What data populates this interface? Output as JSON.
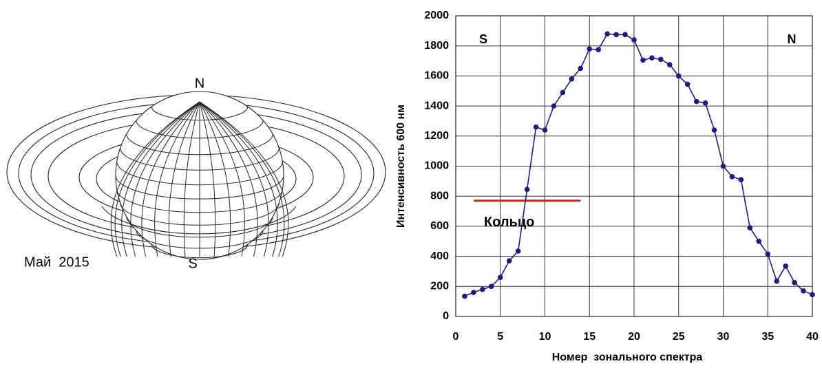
{
  "diagram": {
    "north_label": "N",
    "south_label": "S",
    "caption": "Май  2015"
  },
  "chart_data": {
    "type": "line",
    "x": [
      1,
      2,
      3,
      4,
      5,
      6,
      7,
      8,
      9,
      10,
      11,
      12,
      13,
      14,
      15,
      16,
      17,
      18,
      19,
      20,
      21,
      22,
      23,
      24,
      25,
      26,
      27,
      28,
      29,
      30,
      31,
      32,
      33,
      34,
      35,
      36,
      37,
      38,
      39,
      40
    ],
    "series": [
      {
        "name": "Интенсивность 600 нм",
        "color": "#1c1c80",
        "values": [
          135,
          160,
          180,
          200,
          260,
          370,
          435,
          845,
          1260,
          1240,
          1400,
          1490,
          1580,
          1650,
          1780,
          1775,
          1880,
          1875,
          1875,
          1840,
          1705,
          1720,
          1710,
          1675,
          1600,
          1545,
          1430,
          1420,
          1240,
          1000,
          930,
          910,
          590,
          500,
          415,
          235,
          335,
          225,
          170,
          145
        ]
      }
    ],
    "xlabel": "Номер  зонального спектра",
    "ylabel": "Интенсивность 600 нм",
    "xlim": [
      0,
      40
    ],
    "xticks": [
      0,
      5,
      10,
      15,
      20,
      25,
      30,
      35,
      40
    ],
    "ylim": [
      0,
      2000
    ],
    "yticks": [
      0,
      200,
      400,
      600,
      800,
      1000,
      1200,
      1400,
      1600,
      1800,
      2000
    ],
    "grid": true,
    "annotations": {
      "left": "S",
      "right": "N"
    },
    "reference_line": {
      "label": "Кольцо",
      "y": 770,
      "x": [
        2,
        14
      ],
      "color": "#e02020"
    }
  }
}
